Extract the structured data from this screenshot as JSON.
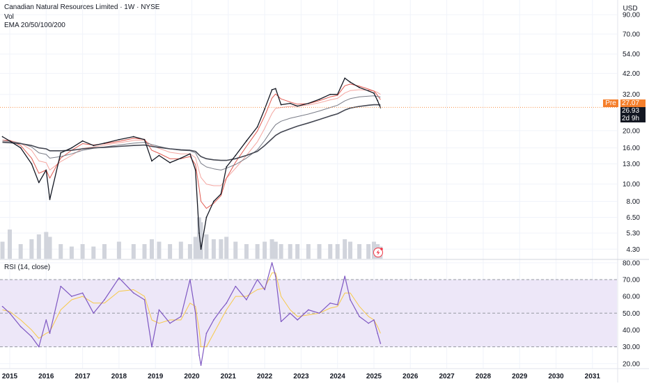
{
  "header": {
    "title": "Canadian Natural Resources Limited · 1W · NYSE",
    "vol_label": "Vol",
    "ema_label": "EMA 20/50/100/200",
    "currency": "USD"
  },
  "rsi_panel": {
    "label": "RSI (14, close)"
  },
  "price_tags": {
    "pre_label": "Pre",
    "pre_value": "27.07",
    "last_value": "26.93",
    "countdown": "2d 9h"
  },
  "colors": {
    "price": "#131722",
    "ema20": "#e0584f",
    "ema50": "#f4a6a0",
    "ema100": "#787b86",
    "ema200": "#434651",
    "volume": "#d1d4dc",
    "rsi_line": "#7e57c2",
    "rsi_ma": "#f7c948",
    "rsi_band": "#ede7f8",
    "pre_tag": "#f57f2c"
  },
  "chart_data": [
    {
      "type": "line",
      "yscale": "log",
      "ylim": [
        3.8,
        105
      ],
      "ytick_labels": [
        "90.00",
        "70.00",
        "54.00",
        "42.00",
        "32.00",
        "26.93",
        "20.00",
        "16.00",
        "13.00",
        "10.00",
        "8.00",
        "6.50",
        "5.30",
        "4.30"
      ],
      "ytick_values": [
        90,
        70,
        54,
        42,
        32,
        26.93,
        20,
        16,
        13,
        10,
        8,
        6.5,
        5.3,
        4.3
      ],
      "x": [
        2014.8,
        2015.0,
        2015.3,
        2015.6,
        2015.8,
        2016.0,
        2016.1,
        2016.4,
        2016.7,
        2017.0,
        2017.3,
        2017.6,
        2018.0,
        2018.4,
        2018.7,
        2018.9,
        2019.1,
        2019.4,
        2019.7,
        2019.95,
        2020.1,
        2020.2,
        2020.25,
        2020.4,
        2020.6,
        2020.8,
        2020.95,
        2021.2,
        2021.5,
        2021.8,
        2022.0,
        2022.2,
        2022.3,
        2022.45,
        2022.7,
        2022.9,
        2023.2,
        2023.5,
        2023.8,
        2024.0,
        2024.2,
        2024.35,
        2024.6,
        2024.85,
        2025.0,
        2025.1,
        2025.18
      ],
      "series": [
        {
          "key": "price",
          "values": [
            18.5,
            17.5,
            16.0,
            13.0,
            10.2,
            12.0,
            8.2,
            15.0,
            16.0,
            17.5,
            16.5,
            17.0,
            17.8,
            18.5,
            17.8,
            13.5,
            14.5,
            13.2,
            14.0,
            14.8,
            12.0,
            5.3,
            4.3,
            6.5,
            8.0,
            8.8,
            12.5,
            14.5,
            17.5,
            21.0,
            26.5,
            34.0,
            34.5,
            28.0,
            28.5,
            27.5,
            28.5,
            30.0,
            32.0,
            32.0,
            39.5,
            37.5,
            35.0,
            33.5,
            32.5,
            29.5,
            26.93
          ]
        },
        {
          "key": "ema20",
          "values": [
            17.5,
            17.6,
            16.5,
            14.0,
            11.5,
            12.0,
            10.8,
            14.0,
            15.5,
            16.9,
            16.6,
            16.9,
            17.4,
            18.1,
            17.9,
            15.5,
            14.9,
            13.9,
            13.9,
            14.3,
            12.9,
            9.5,
            8.0,
            7.3,
            7.8,
            8.6,
            10.8,
            13.3,
            16.3,
            19.9,
            24.2,
            30.5,
            32.2,
            30.2,
            29.0,
            28.2,
            28.4,
            29.5,
            31.0,
            31.6,
            35.8,
            36.6,
            35.6,
            34.3,
            33.4,
            31.6,
            29.9
          ]
        },
        {
          "key": "ema50",
          "values": [
            17.8,
            17.6,
            17.0,
            15.5,
            13.5,
            13.2,
            12.0,
            13.4,
            14.5,
            15.9,
            16.2,
            16.6,
            17.1,
            17.6,
            17.7,
            16.5,
            15.9,
            15.1,
            14.8,
            14.8,
            14.1,
            11.8,
            10.9,
            10.0,
            9.8,
            9.8,
            10.8,
            12.3,
            14.5,
            17.3,
            20.6,
            25.0,
            26.7,
            27.0,
            27.4,
            27.5,
            27.9,
            28.7,
            29.8,
            30.4,
            32.6,
            33.6,
            34.0,
            33.8,
            33.5,
            32.8,
            32.0
          ]
        },
        {
          "key": "ema100",
          "values": [
            17.5,
            17.4,
            17.0,
            16.2,
            15.0,
            14.7,
            14.0,
            14.3,
            14.8,
            15.5,
            15.9,
            16.2,
            16.6,
            17.0,
            17.2,
            16.7,
            16.3,
            15.8,
            15.5,
            15.4,
            15.0,
            13.7,
            13.1,
            12.5,
            12.2,
            12.0,
            12.3,
            12.9,
            14.0,
            15.6,
            17.6,
            20.3,
            21.6,
            22.6,
            23.5,
            24.0,
            24.8,
            25.8,
            27.0,
            27.8,
            29.4,
            30.3,
            31.0,
            31.3,
            31.4,
            31.2,
            30.9
          ]
        },
        {
          "key": "ema200",
          "values": [
            17.2,
            17.1,
            16.9,
            16.5,
            16.0,
            15.8,
            15.4,
            15.4,
            15.5,
            15.8,
            16.0,
            16.1,
            16.3,
            16.5,
            16.6,
            16.3,
            16.1,
            15.8,
            15.6,
            15.5,
            15.3,
            14.6,
            14.3,
            13.9,
            13.7,
            13.6,
            13.6,
            13.9,
            14.5,
            15.3,
            16.5,
            18.0,
            18.8,
            19.6,
            20.5,
            21.2,
            22.1,
            23.1,
            24.2,
            24.9,
            26.1,
            26.8,
            27.4,
            27.8,
            28.0,
            28.0,
            27.9
          ]
        }
      ],
      "volume": {
        "x": [
          2014.8,
          2015.0,
          2015.3,
          2015.6,
          2015.8,
          2016.0,
          2016.1,
          2016.4,
          2016.7,
          2017.0,
          2017.3,
          2017.6,
          2018.0,
          2018.4,
          2018.7,
          2018.9,
          2019.1,
          2019.4,
          2019.7,
          2019.95,
          2020.1,
          2020.2,
          2020.25,
          2020.4,
          2020.6,
          2020.8,
          2020.95,
          2021.2,
          2021.5,
          2021.8,
          2022.0,
          2022.2,
          2022.3,
          2022.45,
          2022.7,
          2022.9,
          2023.2,
          2023.5,
          2023.8,
          2024.0,
          2024.2,
          2024.35,
          2024.6,
          2024.85,
          2025.0,
          2025.1,
          2025.18
        ],
        "values": [
          0.35,
          0.6,
          0.3,
          0.4,
          0.5,
          0.55,
          0.45,
          0.3,
          0.25,
          0.3,
          0.25,
          0.3,
          0.35,
          0.3,
          0.3,
          0.4,
          0.35,
          0.3,
          0.35,
          0.3,
          0.45,
          0.85,
          0.75,
          0.5,
          0.4,
          0.4,
          0.45,
          0.35,
          0.3,
          0.3,
          0.35,
          0.4,
          0.35,
          0.3,
          0.3,
          0.3,
          0.3,
          0.3,
          0.3,
          0.3,
          0.4,
          0.35,
          0.3,
          0.3,
          0.35,
          0.3,
          0.25
        ]
      }
    },
    {
      "type": "line",
      "title": "RSI (14, close)",
      "ylim": [
        17,
        82
      ],
      "ytick_values": [
        80,
        70,
        60,
        50,
        40,
        30,
        20
      ],
      "ytick_labels": [
        "80.00",
        "70.00",
        "60.00",
        "50.00",
        "40.00",
        "30.00",
        "20.00"
      ],
      "bands": [
        30,
        70
      ],
      "midline": 50,
      "x": [
        2014.8,
        2015.0,
        2015.3,
        2015.6,
        2015.8,
        2016.0,
        2016.1,
        2016.4,
        2016.7,
        2017.0,
        2017.3,
        2017.6,
        2018.0,
        2018.4,
        2018.7,
        2018.9,
        2019.1,
        2019.4,
        2019.7,
        2019.95,
        2020.1,
        2020.2,
        2020.25,
        2020.4,
        2020.6,
        2020.8,
        2020.95,
        2021.2,
        2021.5,
        2021.8,
        2022.0,
        2022.2,
        2022.3,
        2022.45,
        2022.7,
        2022.9,
        2023.2,
        2023.5,
        2023.8,
        2024.0,
        2024.2,
        2024.35,
        2024.6,
        2024.85,
        2025.0,
        2025.1,
        2025.18
      ],
      "series": [
        {
          "key": "rsi",
          "values": [
            54,
            50,
            42,
            36,
            30,
            46,
            38,
            66,
            60,
            62,
            50,
            58,
            71,
            62,
            58,
            30,
            52,
            44,
            48,
            70,
            50,
            25,
            19,
            38,
            46,
            52,
            56,
            66,
            58,
            70,
            64,
            80,
            72,
            45,
            50,
            46,
            52,
            50,
            56,
            55,
            72,
            58,
            48,
            44,
            46,
            38,
            32
          ]
        },
        {
          "key": "rsi_ma",
          "values": [
            52,
            51,
            46,
            40,
            35,
            38,
            39,
            52,
            58,
            60,
            56,
            56,
            63,
            64,
            60,
            46,
            44,
            46,
            46,
            56,
            54,
            40,
            30,
            30,
            38,
            46,
            52,
            60,
            60,
            64,
            65,
            74,
            74,
            60,
            52,
            48,
            49,
            50,
            53,
            54,
            62,
            62,
            54,
            48,
            46,
            42,
            38
          ]
        }
      ]
    }
  ],
  "x_axis": {
    "tick_values": [
      2015,
      2016,
      2017,
      2018,
      2019,
      2020,
      2021,
      2022,
      2023,
      2024,
      2025,
      2026,
      2027,
      2028,
      2029,
      2030,
      2031
    ],
    "tick_labels": [
      "2015",
      "2016",
      "2017",
      "2018",
      "2019",
      "2020",
      "2021",
      "2022",
      "2023",
      "2024",
      "2025",
      "2026",
      "2027",
      "2028",
      "2029",
      "2030",
      "2031"
    ]
  },
  "icons": {
    "flash": "lightning-icon"
  }
}
